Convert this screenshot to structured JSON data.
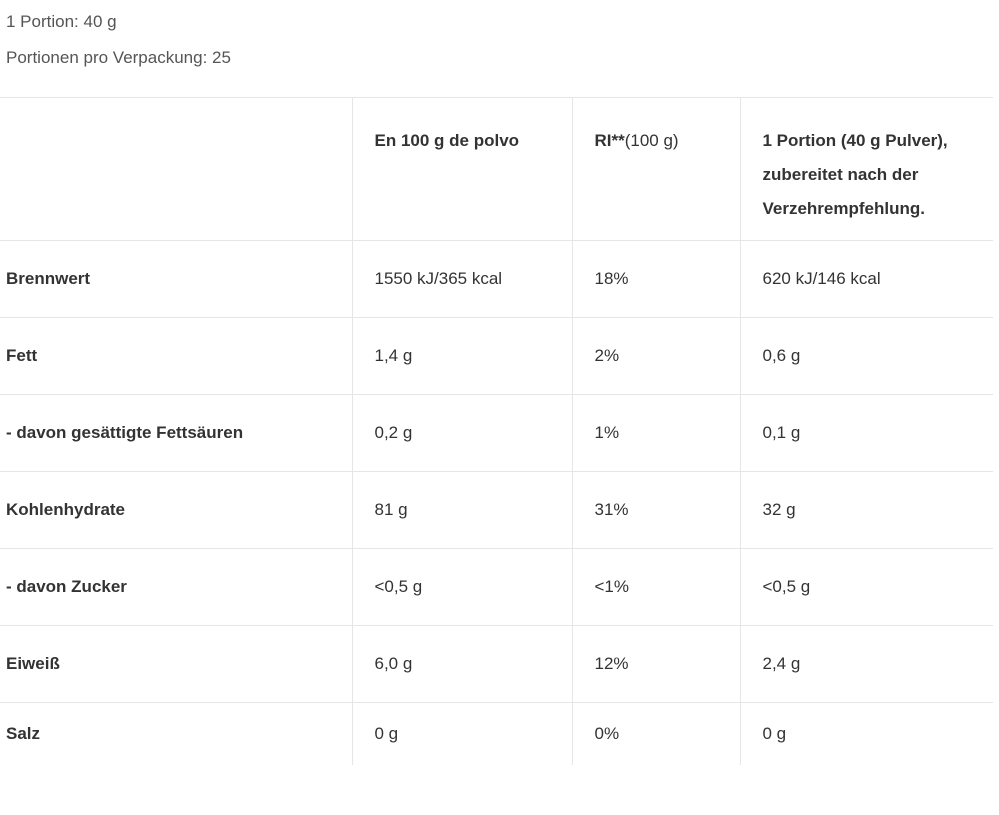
{
  "header": {
    "serving": "1 Portion: 40 g",
    "servings_per_package": "Portionen pro Verpackung: 25"
  },
  "table": {
    "header": [
      "En 100 g de polvo",
      [
        "RI**",
        "(100 g)"
      ],
      "1 Portion (40 g Pulver), zubereitet nach der Verzehrempfehlung."
    ],
    "rows": [
      [
        "Brennwert",
        "1550 kJ/365 kcal",
        "18%",
        "620 kJ/146 kcal"
      ],
      [
        "Fett",
        "1,4 g",
        "2%",
        "0,6 g"
      ],
      [
        "- davon gesättigte Fettsäuren",
        "0,2 g",
        "1%",
        "0,1 g"
      ],
      [
        "Kohlenhydrate",
        "81 g",
        "31%",
        "32 g"
      ],
      [
        "- davon Zucker",
        "<0,5 g",
        "<1%",
        "<0,5 g"
      ],
      [
        "Eiweiß",
        "6,0 g",
        "12%",
        "2,4 g"
      ],
      [
        "Salz",
        "0 g",
        "0%",
        "0 g"
      ]
    ]
  }
}
